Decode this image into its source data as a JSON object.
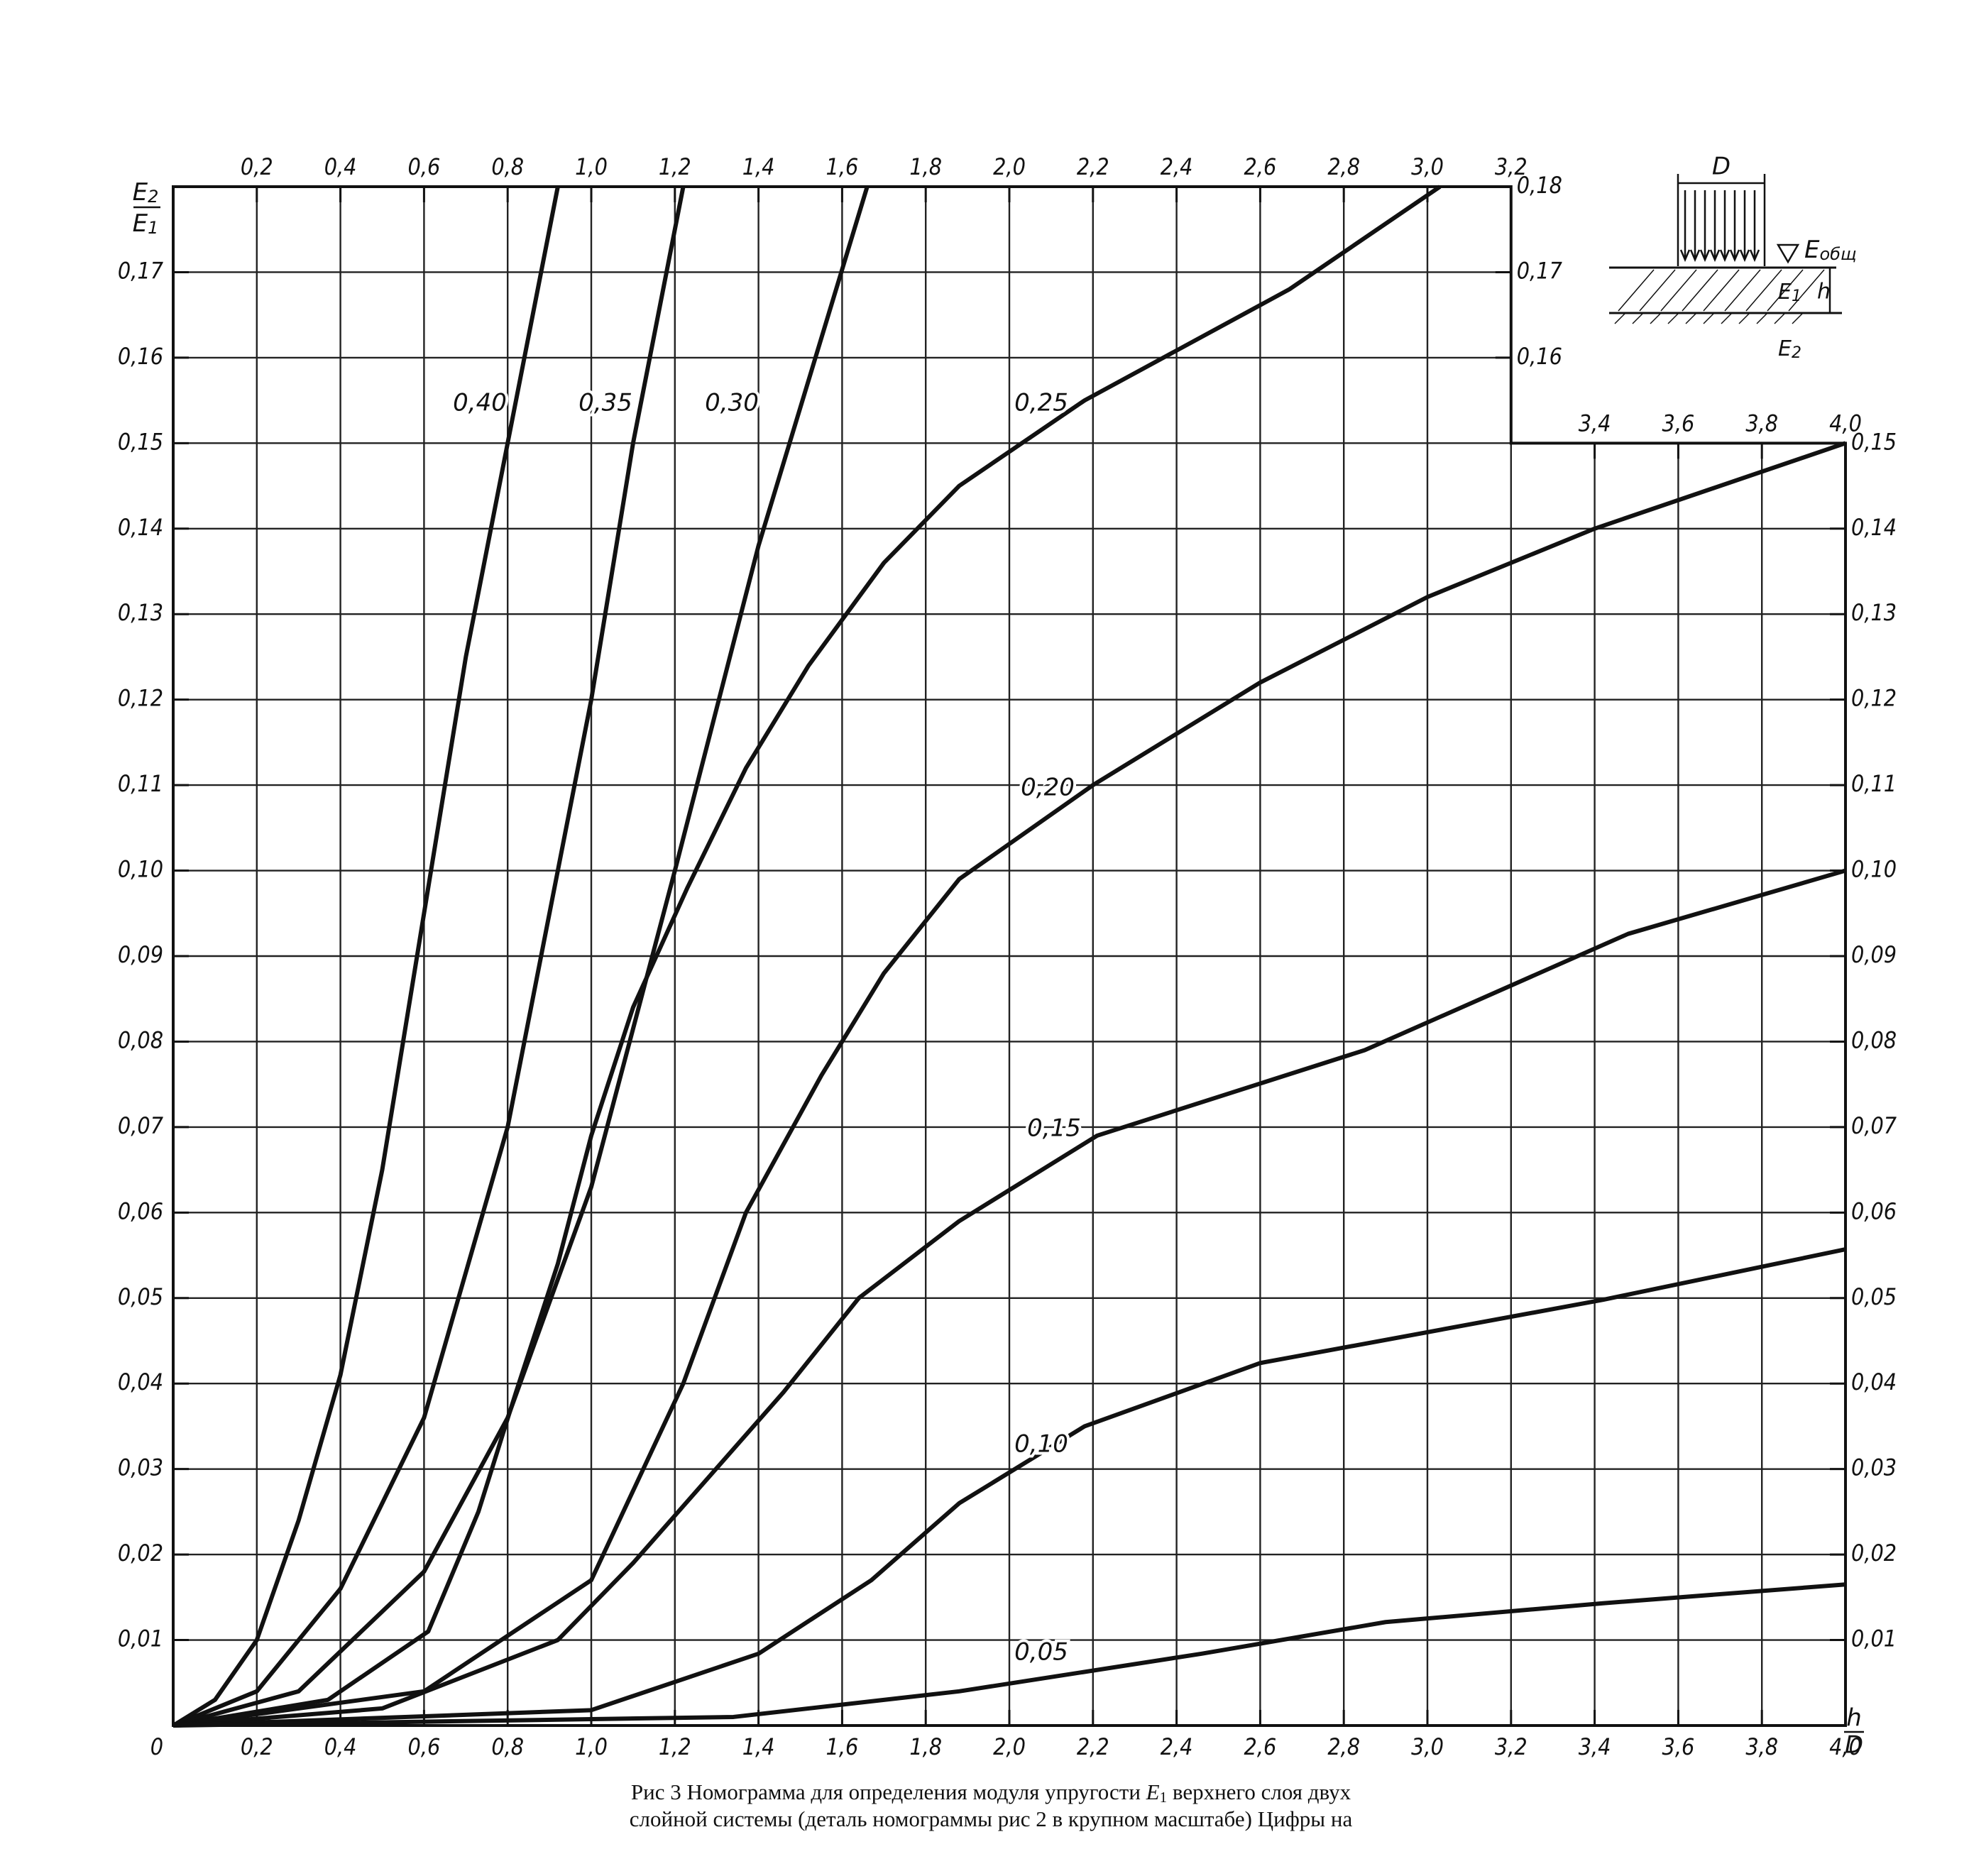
{
  "chart_data": {
    "type": "line",
    "ylabel": {
      "numerator": [
        "E",
        "2"
      ],
      "denominator": [
        "E",
        "1"
      ]
    },
    "xlabel": {
      "numerator": "h",
      "denominator": "D"
    },
    "xlim": [
      0,
      4.0
    ],
    "ylim": [
      0,
      0.18
    ],
    "grid": true,
    "xticks": [
      {
        "value": 0.2,
        "label": "0,2"
      },
      {
        "value": 0.4,
        "label": "0,4"
      },
      {
        "value": 0.6,
        "label": "0,6"
      },
      {
        "value": 0.8,
        "label": "0,8"
      },
      {
        "value": 1.0,
        "label": "1,0"
      },
      {
        "value": 1.2,
        "label": "1,2"
      },
      {
        "value": 1.4,
        "label": "1,4"
      },
      {
        "value": 1.6,
        "label": "1,6"
      },
      {
        "value": 1.8,
        "label": "1,8"
      },
      {
        "value": 2.0,
        "label": "2,0"
      },
      {
        "value": 2.2,
        "label": "2,2"
      },
      {
        "value": 2.4,
        "label": "2,4"
      },
      {
        "value": 2.6,
        "label": "2,6"
      },
      {
        "value": 2.8,
        "label": "2,8"
      },
      {
        "value": 3.0,
        "label": "3,0"
      },
      {
        "value": 3.2,
        "label": "3,2"
      },
      {
        "value": 3.4,
        "label": "3,4"
      },
      {
        "value": 3.6,
        "label": "3,6"
      },
      {
        "value": 3.8,
        "label": "3,8"
      },
      {
        "value": 4.0,
        "label": "4,0"
      }
    ],
    "xticks_top": [
      {
        "value": 0.2,
        "label": "0,2"
      },
      {
        "value": 0.4,
        "label": "0,4"
      },
      {
        "value": 0.6,
        "label": "0,6"
      },
      {
        "value": 0.8,
        "label": "0,8"
      },
      {
        "value": 1.0,
        "label": "1,0"
      },
      {
        "value": 1.2,
        "label": "1,2"
      },
      {
        "value": 1.4,
        "label": "1,4"
      },
      {
        "value": 1.6,
        "label": "1,6"
      },
      {
        "value": 1.8,
        "label": "1,8"
      },
      {
        "value": 2.0,
        "label": "2,0"
      },
      {
        "value": 2.2,
        "label": "2,2"
      },
      {
        "value": 2.4,
        "label": "2,4"
      },
      {
        "value": 2.6,
        "label": "2,6"
      },
      {
        "value": 2.8,
        "label": "2,8"
      },
      {
        "value": 3.0,
        "label": "3,0"
      },
      {
        "value": 3.2,
        "label": "3,2"
      }
    ],
    "xticks_top_right": [
      {
        "value": 3.4,
        "label": "3,4"
      },
      {
        "value": 3.6,
        "label": "3,6"
      },
      {
        "value": 3.8,
        "label": "3,8"
      },
      {
        "value": 4.0,
        "label": "4,0"
      }
    ],
    "yticks": [
      0,
      {
        "value": 0.01,
        "label": "0,01"
      },
      {
        "value": 0.02,
        "label": "0,02"
      },
      {
        "value": 0.03,
        "label": "0,03"
      },
      {
        "value": 0.04,
        "label": "0,04"
      },
      {
        "value": 0.05,
        "label": "0,05"
      },
      {
        "value": 0.06,
        "label": "0,06"
      },
      {
        "value": 0.07,
        "label": "0,07"
      },
      {
        "value": 0.08,
        "label": "0,08"
      },
      {
        "value": 0.09,
        "label": "0,09"
      },
      {
        "value": 0.1,
        "label": "0,10"
      },
      {
        "value": 0.11,
        "label": "0,11"
      },
      {
        "value": 0.12,
        "label": "0,12"
      },
      {
        "value": 0.13,
        "label": "0,13"
      },
      {
        "value": 0.14,
        "label": "0,14"
      },
      {
        "value": 0.15,
        "label": "0,15"
      },
      {
        "value": 0.16,
        "label": "0,16"
      },
      {
        "value": 0.17,
        "label": "0,17"
      }
    ],
    "yticks_right": [
      {
        "value": 0.01,
        "label": "0,01"
      },
      {
        "value": 0.02,
        "label": "0,02"
      },
      {
        "value": 0.03,
        "label": "0,03"
      },
      {
        "value": 0.04,
        "label": "0,04"
      },
      {
        "value": 0.05,
        "label": "0,05"
      },
      {
        "value": 0.06,
        "label": "0,06"
      },
      {
        "value": 0.07,
        "label": "0,07"
      },
      {
        "value": 0.08,
        "label": "0,08"
      },
      {
        "value": 0.09,
        "label": "0,09"
      },
      {
        "value": 0.1,
        "label": "0,10"
      },
      {
        "value": 0.11,
        "label": "0,11"
      },
      {
        "value": 0.12,
        "label": "0,12"
      },
      {
        "value": 0.13,
        "label": "0,13"
      },
      {
        "value": 0.14,
        "label": "0,14"
      },
      {
        "value": 0.15,
        "label": "0,15"
      }
    ],
    "yticks_right_upper": [
      {
        "value": 0.16,
        "label": "0,16"
      },
      {
        "value": 0.17,
        "label": "0,17"
      },
      {
        "value": 0.18,
        "label": "0,18"
      }
    ],
    "series": [
      {
        "name": "0,40",
        "color": "#111",
        "x": [
          0,
          0.1,
          0.2,
          0.3,
          0.4,
          0.5,
          0.6,
          0.7,
          0.8,
          0.92
        ],
        "values": [
          0,
          0.003,
          0.01,
          0.024,
          0.041,
          0.065,
          0.095,
          0.125,
          0.15,
          0.18
        ]
      },
      {
        "name": "0,35",
        "color": "#111",
        "x": [
          0,
          0.2,
          0.4,
          0.6,
          0.8,
          1.0,
          1.1,
          1.22
        ],
        "values": [
          0,
          0.004,
          0.016,
          0.036,
          0.07,
          0.12,
          0.15,
          0.18
        ]
      },
      {
        "name": "0,30",
        "color": "#111",
        "x": [
          0,
          0.3,
          0.6,
          0.8,
          1.0,
          1.2,
          1.4,
          1.66
        ],
        "values": [
          0,
          0.004,
          0.018,
          0.036,
          0.063,
          0.1,
          0.138,
          0.18
        ]
      },
      {
        "name": "0,25",
        "color": "#111",
        "x": [
          0,
          0.37,
          0.61,
          0.73,
          0.82,
          0.92,
          1.0,
          1.1,
          1.23,
          1.37,
          1.52,
          1.7,
          1.88,
          2.18,
          2.67,
          3.03
        ],
        "values": [
          0,
          0.003,
          0.011,
          0.025,
          0.039,
          0.054,
          0.069,
          0.084,
          0.098,
          0.112,
          0.124,
          0.136,
          0.145,
          0.155,
          0.168,
          0.18
        ]
      },
      {
        "name": "0,20",
        "color": "#111",
        "x": [
          0,
          0.6,
          1.0,
          1.22,
          1.37,
          1.55,
          1.7,
          1.88,
          2.2,
          2.6,
          3.0,
          3.4,
          4.0
        ],
        "values": [
          0,
          0.004,
          0.017,
          0.04,
          0.06,
          0.076,
          0.088,
          0.099,
          0.11,
          0.122,
          0.132,
          0.14,
          0.15
        ]
      },
      {
        "name": "0,15",
        "color": "#111",
        "x": [
          0,
          0.5,
          0.92,
          1.1,
          1.28,
          1.46,
          1.64,
          1.88,
          2.21,
          2.85,
          3.48,
          4.0
        ],
        "values": [
          0,
          0.002,
          0.01,
          0.019,
          0.029,
          0.039,
          0.05,
          0.059,
          0.069,
          0.079,
          0.0926,
          0.1
        ]
      },
      {
        "name": "0,10",
        "color": "#111",
        "x": [
          0,
          1.0,
          1.4,
          1.67,
          1.88,
          2.18,
          2.6,
          3.42,
          4.0
        ],
        "values": [
          0,
          0.0018,
          0.0084,
          0.017,
          0.026,
          0.035,
          0.0424,
          0.0498,
          0.0557
        ]
      },
      {
        "name": "0,05",
        "color": "#111",
        "x": [
          0,
          1.34,
          1.88,
          2.46,
          2.9,
          3.42,
          4.0
        ],
        "values": [
          0,
          0.001,
          0.004,
          0.0084,
          0.0121,
          0.0143,
          0.0165
        ]
      }
    ]
  },
  "inset": {
    "width_label": "D",
    "total_modulus": [
      "E",
      "общ"
    ],
    "upper_modulus": [
      "E",
      "1"
    ],
    "thickness_label": "h",
    "lower_modulus": [
      "E",
      "2"
    ]
  },
  "caption": [
    [
      "Рис 3 Номограмма для определения модуля упругости ",
      "E",
      "1",
      " верхнего слоя двух"
    ],
    [
      "слойной системы (деталь номограммы рис 2 в крупном масштабе) Цифры на"
    ]
  ]
}
